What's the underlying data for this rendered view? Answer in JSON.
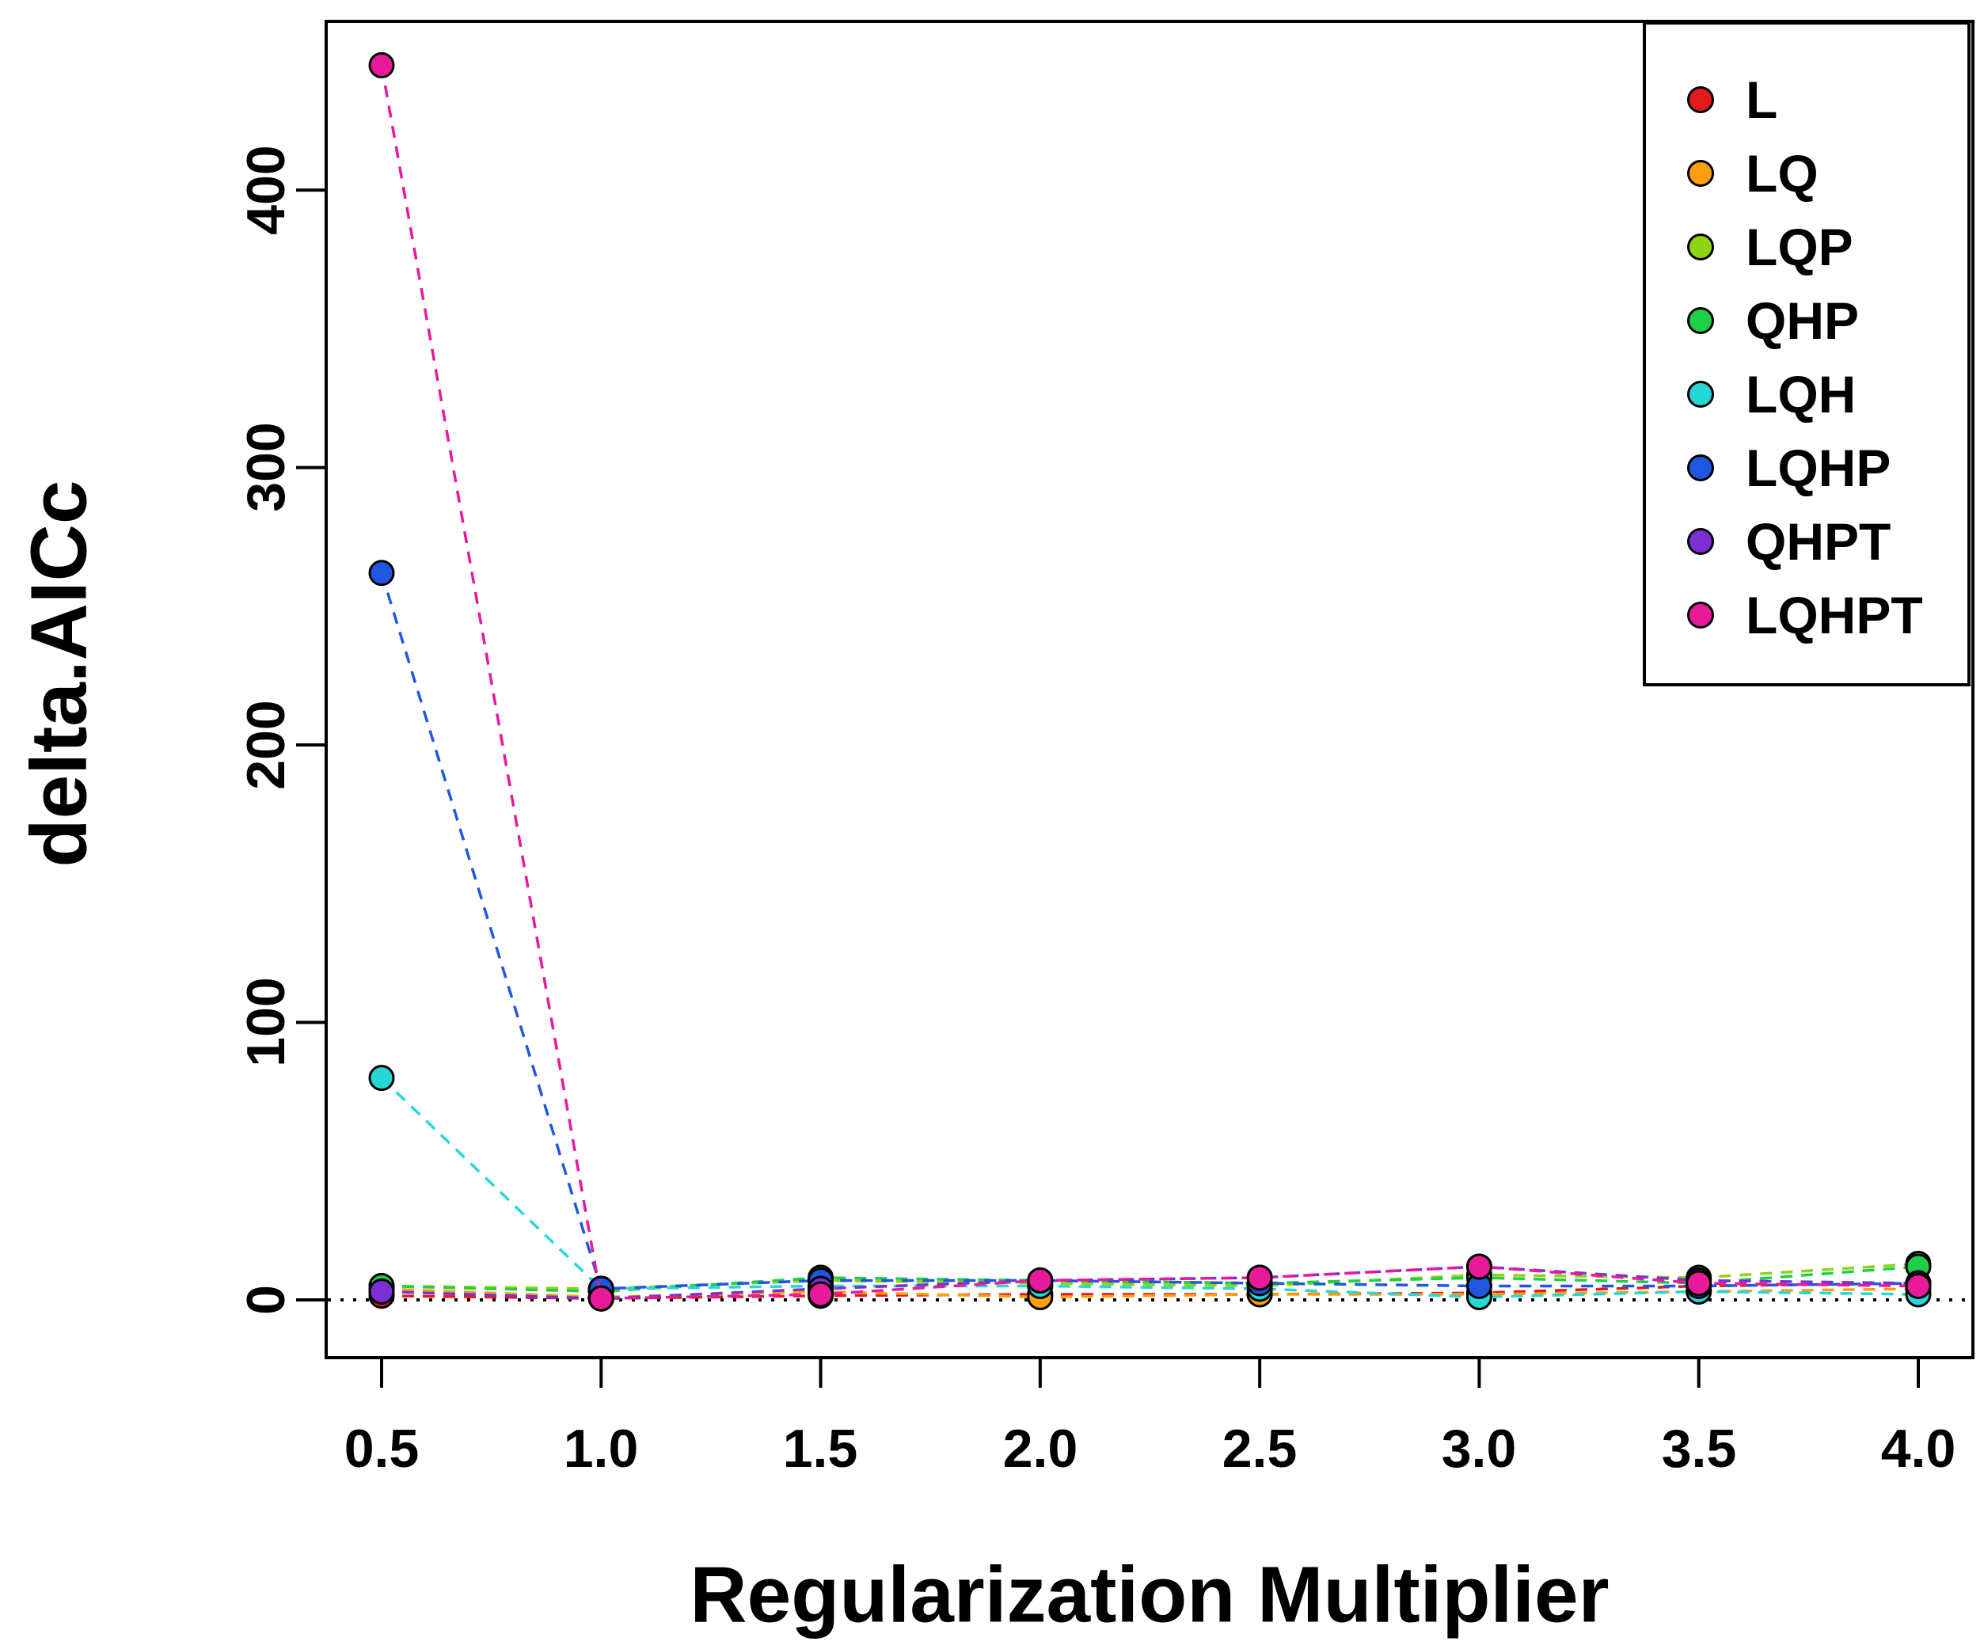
{
  "chart_data": {
    "type": "line",
    "title": "",
    "xlabel": "Regularization Multiplier",
    "ylabel": "delta.AICc",
    "x": [
      0.5,
      1.0,
      1.5,
      2.0,
      2.5,
      3.0,
      3.5,
      4.0
    ],
    "x_tick_labels": [
      "0.5",
      "1.0",
      "1.5",
      "2.0",
      "2.5",
      "3.0",
      "3.5",
      "4.0"
    ],
    "y_ticks": [
      0,
      100,
      200,
      300,
      400
    ],
    "y_tick_labels": [
      "0",
      "100",
      "200",
      "300",
      "400"
    ],
    "xlim": [
      0.3,
      4.2
    ],
    "ylim": [
      -21,
      461
    ],
    "grid": false,
    "legend_position": "top-right",
    "marker": "circle-black-outline",
    "line_style": "dashed",
    "reference_line": {
      "y": 0,
      "style": "dotted",
      "color": "#000000"
    },
    "series": [
      {
        "name": "L",
        "color": "#e31a1c",
        "values": [
          1.5,
          0.5,
          1.5,
          2,
          2,
          2.5,
          5,
          6
        ]
      },
      {
        "name": "LQ",
        "color": "#ff9f0f",
        "values": [
          4,
          1,
          3,
          1,
          2,
          2,
          3,
          4
        ]
      },
      {
        "name": "LQP",
        "color": "#8fd412",
        "values": [
          5,
          4,
          7,
          6,
          5,
          9,
          8,
          13
        ]
      },
      {
        "name": "QHP",
        "color": "#1ecf49",
        "values": [
          5,
          3,
          8,
          7,
          6,
          8,
          6,
          12
        ]
      },
      {
        "name": "LQH",
        "color": "#26d7d7",
        "values": [
          80,
          4,
          5,
          5,
          4,
          1,
          3,
          2
        ]
      },
      {
        "name": "LQHP",
        "color": "#2156e0",
        "values": [
          262,
          4,
          7,
          7,
          6,
          5,
          5,
          6
        ]
      },
      {
        "name": "QHPT",
        "color": "#7d2fd4",
        "values": [
          3,
          0.5,
          4,
          7,
          8,
          12,
          7,
          6
        ]
      },
      {
        "name": "LQHPT",
        "color": "#e8199b",
        "values": [
          445,
          0.5,
          2,
          7,
          8,
          12,
          6,
          5
        ]
      }
    ]
  }
}
